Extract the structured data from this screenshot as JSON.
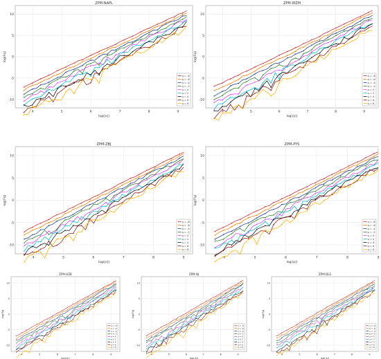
{
  "figure": {
    "legend_labels": [
      "q = -8",
      "q = -6",
      "q = -4",
      "q = -2",
      "q = 0",
      "q = 2",
      "q = 4",
      "q = 6",
      "q = 8"
    ],
    "series_colors": [
      "#c62828",
      "#f57c00",
      "#1e3a8a",
      "#2e7d32",
      "#e040fb",
      "#00bcd4",
      "#111111",
      "#8b1a1a",
      "#ffb300"
    ]
  },
  "chart_data": [
    {
      "type": "line",
      "title": "ZPM-NAPL",
      "xlabel": "log(|s|)",
      "ylabel": "log(Fq)",
      "xlim": [
        3.4,
        9.5
      ],
      "ylim": [
        -12,
        12
      ],
      "xticks": [
        4,
        5,
        6,
        7,
        8,
        9
      ],
      "yticks": [
        -10,
        -5,
        0,
        5,
        10
      ],
      "grid": true,
      "legend": "bottom-right",
      "x": [
        3.7,
        9.3
      ],
      "series_ranges": [
        {
          "name": "q = -8",
          "start": -7.0,
          "end": 10.8
        },
        {
          "name": "q = -6",
          "start": -7.8,
          "end": 10.3
        },
        {
          "name": "q = -4",
          "start": -8.6,
          "end": 9.8
        },
        {
          "name": "q = -2",
          "start": -9.4,
          "end": 9.3
        },
        {
          "name": "q = 0",
          "start": -10.2,
          "end": 8.8
        },
        {
          "name": "q = 2",
          "start": -11.0,
          "end": 8.3
        },
        {
          "name": "q = 4",
          "start": -11.8,
          "end": 7.8
        },
        {
          "name": "q = 6",
          "start": -12.6,
          "end": 7.3
        },
        {
          "name": "q = 8",
          "start": -13.4,
          "end": 6.8
        }
      ]
    },
    {
      "type": "line",
      "title": "ZPM-WZM",
      "xlabel": "log(|s|)",
      "ylabel": "log(Fq)",
      "xlim": [
        3.4,
        9.5
      ],
      "ylim": [
        -12,
        12
      ],
      "xticks": [
        4,
        5,
        6,
        7,
        8,
        9
      ],
      "yticks": [
        -10,
        -5,
        0,
        5,
        10
      ],
      "grid": true,
      "legend": "bottom-right",
      "x": [
        3.7,
        9.3
      ],
      "series_ranges": [
        {
          "name": "q = -8",
          "start": -7.0,
          "end": 10.8
        },
        {
          "name": "q = -6",
          "start": -8.0,
          "end": 10.3
        },
        {
          "name": "q = -4",
          "start": -9.0,
          "end": 9.8
        },
        {
          "name": "q = -2",
          "start": -10.0,
          "end": 9.3
        },
        {
          "name": "q = 0",
          "start": -11.0,
          "end": 8.8
        },
        {
          "name": "q = 2",
          "start": -12.0,
          "end": 8.3
        },
        {
          "name": "q = 4",
          "start": -13.0,
          "end": 7.8
        },
        {
          "name": "q = 6",
          "start": -14.0,
          "end": 7.3
        },
        {
          "name": "q = 8",
          "start": -15.0,
          "end": 6.8
        }
      ]
    },
    {
      "type": "line",
      "title": "ZPM-ZBJ",
      "xlabel": "log(|s|)",
      "ylabel": "log(Fq)",
      "xlim": [
        3.4,
        9.3
      ],
      "ylim": [
        -12,
        12
      ],
      "xticks": [
        4,
        5,
        6,
        7,
        8,
        9
      ],
      "yticks": [
        -10,
        -5,
        0,
        5,
        10
      ],
      "grid": true,
      "legend": "bottom-right",
      "x": [
        3.7,
        9.0
      ],
      "series_ranges": [
        {
          "name": "q = -8",
          "start": -7.0,
          "end": 10.8
        },
        {
          "name": "q = -6",
          "start": -7.8,
          "end": 10.3
        },
        {
          "name": "q = -4",
          "start": -8.6,
          "end": 9.8
        },
        {
          "name": "q = -2",
          "start": -9.4,
          "end": 9.3
        },
        {
          "name": "q = 0",
          "start": -10.2,
          "end": 8.8
        },
        {
          "name": "q = 2",
          "start": -11.0,
          "end": 8.3
        },
        {
          "name": "q = 4",
          "start": -11.8,
          "end": 7.8
        },
        {
          "name": "q = 6",
          "start": -12.6,
          "end": 7.3
        },
        {
          "name": "q = 8",
          "start": -13.4,
          "end": 6.8
        }
      ]
    },
    {
      "type": "line",
      "title": "ZPM-PYS",
      "xlabel": "log(|s|)",
      "ylabel": "log(Fq)",
      "xlim": [
        3.4,
        9.0
      ],
      "ylim": [
        -12,
        12
      ],
      "xticks": [
        4,
        5,
        6,
        7,
        8,
        9
      ],
      "yticks": [
        -10,
        -5,
        0,
        5,
        10
      ],
      "grid": true,
      "legend": "bottom-right",
      "x": [
        3.7,
        9.0
      ],
      "series_ranges": [
        {
          "name": "q = -8",
          "start": -7.0,
          "end": 10.8
        },
        {
          "name": "q = -6",
          "start": -7.8,
          "end": 10.3
        },
        {
          "name": "q = -4",
          "start": -8.6,
          "end": 9.8
        },
        {
          "name": "q = -2",
          "start": -9.4,
          "end": 9.3
        },
        {
          "name": "q = 0",
          "start": -10.2,
          "end": 8.8
        },
        {
          "name": "q = 2",
          "start": -11.0,
          "end": 8.3
        },
        {
          "name": "q = 4",
          "start": -11.8,
          "end": 7.8
        },
        {
          "name": "q = 6",
          "start": -12.6,
          "end": 7.3
        },
        {
          "name": "q = 8",
          "start": -13.4,
          "end": 6.8
        }
      ]
    },
    {
      "type": "line",
      "title": "ZPM-HZB",
      "xlabel": "log(|s|)",
      "ylabel": "log(Fq)",
      "xlim": [
        3.4,
        9.5
      ],
      "ylim": [
        -12,
        12
      ],
      "xticks": [
        4,
        5,
        6,
        7,
        8,
        9
      ],
      "yticks": [
        -10,
        -5,
        0,
        5,
        10
      ],
      "grid": true,
      "legend": "bottom-right",
      "x": [
        3.7,
        9.3
      ],
      "series_ranges": [
        {
          "name": "q = -8",
          "start": -7.0,
          "end": 10.8
        },
        {
          "name": "q = -6",
          "start": -7.8,
          "end": 10.3
        },
        {
          "name": "q = -4",
          "start": -8.6,
          "end": 9.8
        },
        {
          "name": "q = -2",
          "start": -9.4,
          "end": 9.3
        },
        {
          "name": "q = 0",
          "start": -10.2,
          "end": 8.8
        },
        {
          "name": "q = 2",
          "start": -11.0,
          "end": 8.3
        },
        {
          "name": "q = 4",
          "start": -11.8,
          "end": 7.8
        },
        {
          "name": "q = 6",
          "start": -12.6,
          "end": 7.3
        },
        {
          "name": "q = 8",
          "start": -13.4,
          "end": 6.8
        }
      ]
    },
    {
      "type": "line",
      "title": "ZPM-NJ",
      "xlabel": "log(|s|)",
      "ylabel": "log(Fq)",
      "xlim": [
        3.4,
        9.5
      ],
      "ylim": [
        -12,
        12
      ],
      "xticks": [
        4,
        5,
        6,
        7,
        8,
        9
      ],
      "yticks": [
        -10,
        -5,
        0,
        5,
        10
      ],
      "grid": true,
      "legend": "bottom-right",
      "x": [
        3.7,
        9.3
      ],
      "series_ranges": [
        {
          "name": "q = -8",
          "start": -7.0,
          "end": 10.8
        },
        {
          "name": "q = -6",
          "start": -7.8,
          "end": 10.3
        },
        {
          "name": "q = -4",
          "start": -8.6,
          "end": 9.8
        },
        {
          "name": "q = -2",
          "start": -9.4,
          "end": 9.3
        },
        {
          "name": "q = 0",
          "start": -10.2,
          "end": 8.8
        },
        {
          "name": "q = 2",
          "start": -11.0,
          "end": 8.3
        },
        {
          "name": "q = 4",
          "start": -11.8,
          "end": 7.8
        },
        {
          "name": "q = 6",
          "start": -12.6,
          "end": 7.3
        },
        {
          "name": "q = 8",
          "start": -13.4,
          "end": 6.8
        }
      ]
    },
    {
      "type": "line",
      "title": "ZPM-DLS",
      "xlabel": "log(|s|)",
      "ylabel": "log(Fq)",
      "xlim": [
        3.4,
        9.5
      ],
      "ylim": [
        -12,
        12
      ],
      "xticks": [
        4,
        5,
        6,
        7,
        8,
        9
      ],
      "yticks": [
        -10,
        -5,
        0,
        5,
        10
      ],
      "grid": true,
      "legend": "bottom-right",
      "x": [
        3.7,
        9.3
      ],
      "series_ranges": [
        {
          "name": "q = -8",
          "start": -7.0,
          "end": 10.8
        },
        {
          "name": "q = -6",
          "start": -7.8,
          "end": 10.3
        },
        {
          "name": "q = -4",
          "start": -8.6,
          "end": 9.8
        },
        {
          "name": "q = -2",
          "start": -9.4,
          "end": 9.3
        },
        {
          "name": "q = 0",
          "start": -10.2,
          "end": 8.8
        },
        {
          "name": "q = 2",
          "start": -11.0,
          "end": 8.3
        },
        {
          "name": "q = 4",
          "start": -11.8,
          "end": 7.8
        },
        {
          "name": "q = 6",
          "start": -12.6,
          "end": 7.3
        },
        {
          "name": "q = 8",
          "start": -13.4,
          "end": 6.8
        }
      ]
    }
  ]
}
